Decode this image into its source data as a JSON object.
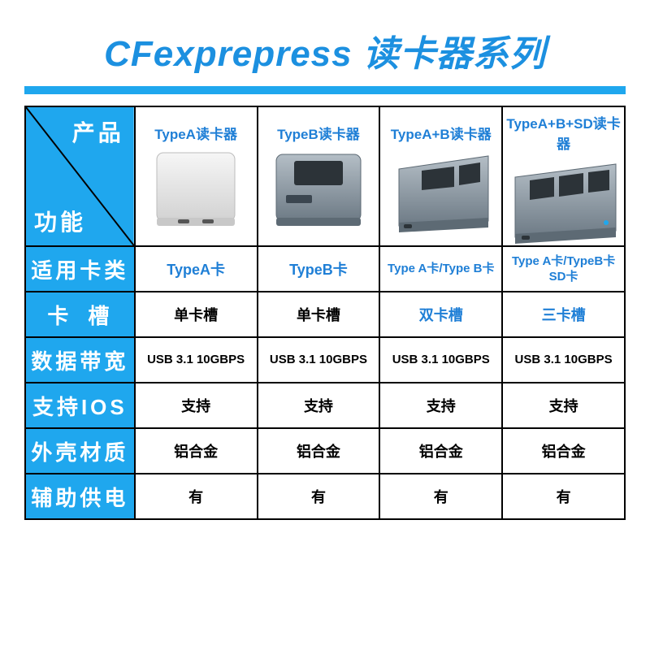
{
  "colors": {
    "accent": "#1fa7ee",
    "title": "#1c90e0",
    "underline": "#1fa7ee",
    "black": "#000000",
    "blueText": "#1f7fd6",
    "white": "#ffffff"
  },
  "title": "CFexprepress 读卡器系列",
  "diag": {
    "top": "产品",
    "bottom": "功能"
  },
  "columns": [
    {
      "name": "TypeA读卡器",
      "device": "silver"
    },
    {
      "name": "TypeB读卡器",
      "device": "gray-slot1"
    },
    {
      "name": "TypeA+B读卡器",
      "device": "gray-slot2"
    },
    {
      "name": "TypeA+B+SD读卡器",
      "device": "gray-slot3"
    }
  ],
  "rows": [
    {
      "label": "适用卡类",
      "spread": false,
      "cells": [
        {
          "text": "TypeA卡",
          "color": "blue"
        },
        {
          "text": "TypeB卡",
          "color": "blue"
        },
        {
          "text": "Type A卡/Type B卡",
          "color": "blue",
          "small": true
        },
        {
          "text": "Type A卡/TypeB卡\nSD卡",
          "color": "blue",
          "small": true
        }
      ]
    },
    {
      "label": "卡槽",
      "spread": true,
      "cells": [
        {
          "text": "单卡槽",
          "color": "black"
        },
        {
          "text": "单卡槽",
          "color": "black"
        },
        {
          "text": "双卡槽",
          "color": "blue"
        },
        {
          "text": "三卡槽",
          "color": "blue"
        }
      ]
    },
    {
      "label": "数据带宽",
      "spread": false,
      "cells": [
        {
          "text": "USB 3.1 10GBPS",
          "color": "black",
          "small": true
        },
        {
          "text": "USB 3.1 10GBPS",
          "color": "black",
          "small": true
        },
        {
          "text": "USB 3.1 10GBPS",
          "color": "black",
          "small": true
        },
        {
          "text": "USB 3.1 10GBPS",
          "color": "black",
          "small": true
        }
      ]
    },
    {
      "label": "支持IOS",
      "spread": false,
      "cells": [
        {
          "text": "支持",
          "color": "black"
        },
        {
          "text": "支持",
          "color": "black"
        },
        {
          "text": "支持",
          "color": "black"
        },
        {
          "text": "支持",
          "color": "black"
        }
      ]
    },
    {
      "label": "外壳材质",
      "spread": false,
      "cells": [
        {
          "text": "铝合金",
          "color": "black"
        },
        {
          "text": "铝合金",
          "color": "black"
        },
        {
          "text": "铝合金",
          "color": "black"
        },
        {
          "text": "铝合金",
          "color": "black"
        }
      ]
    },
    {
      "label": "辅助供电",
      "spread": false,
      "cells": [
        {
          "text": "有",
          "color": "black"
        },
        {
          "text": "有",
          "color": "black"
        },
        {
          "text": "有",
          "color": "black"
        },
        {
          "text": "有",
          "color": "black"
        }
      ]
    }
  ],
  "deviceStyles": {
    "silverBody": "#e4e4e4",
    "silverHi": "#f6f6f6",
    "grayBody": "#8d99a3",
    "grayHi": "#b4bec6",
    "grayDark": "#5d6a74",
    "slot": "#2c3338"
  }
}
